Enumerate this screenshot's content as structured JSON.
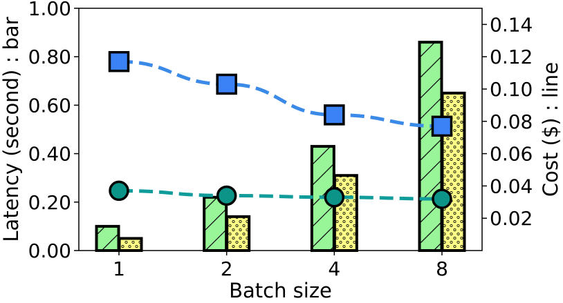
{
  "chart_data": {
    "type": "bar",
    "categories": [
      "1",
      "2",
      "4",
      "8"
    ],
    "xlabel": "Batch size",
    "ylabel_left": "Latency (second) : bar",
    "ylabel_right": "Cost ($) : line",
    "ylim_left": [
      0,
      1.0
    ],
    "ylim_right": [
      0,
      0.15
    ],
    "left_ticks": [
      0.0,
      0.2,
      0.4,
      0.6,
      0.8,
      1.0
    ],
    "left_tick_labels": [
      "0.00",
      "0.20",
      "0.40",
      "0.60",
      "0.80",
      "1.00"
    ],
    "right_ticks": [
      0.02,
      0.04,
      0.06,
      0.08,
      0.1,
      0.12,
      0.14
    ],
    "right_tick_labels": [
      "0.02",
      "0.04",
      "0.06",
      "0.08",
      "0.10",
      "0.12",
      "0.14"
    ],
    "grid": false,
    "bar_series": [
      {
        "values": [
          0.1,
          0.22,
          0.43,
          0.86
        ],
        "color": "#98f598",
        "pattern": "diagonal-hatch"
      },
      {
        "values": [
          0.05,
          0.14,
          0.31,
          0.65
        ],
        "color": "#fcfc87",
        "pattern": "dots"
      }
    ],
    "line_series": [
      {
        "values": [
          0.117,
          0.103,
          0.084,
          0.077
        ],
        "color": "#3b82f6",
        "marker": "square",
        "line_color": "#3b8ae8"
      },
      {
        "values": [
          0.037,
          0.034,
          0.033,
          0.032
        ],
        "color": "#0d9488",
        "marker": "circle",
        "line_color": "#0f9c9a"
      }
    ]
  }
}
